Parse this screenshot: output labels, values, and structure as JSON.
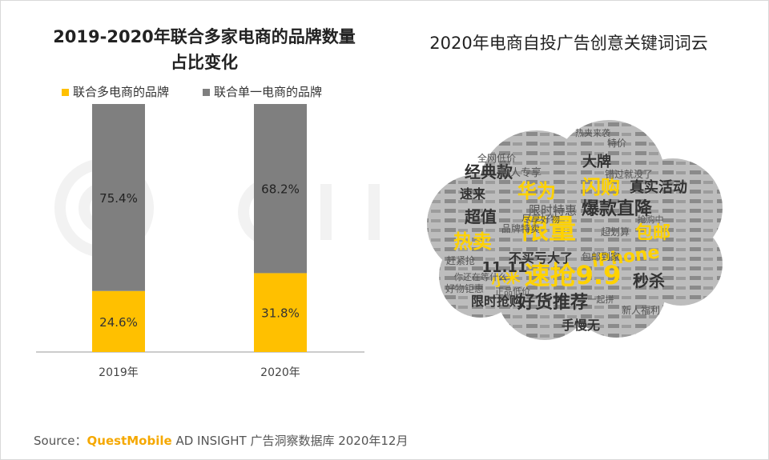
{
  "left_chart": {
    "title_line1": "2019-2020年联合多家电商的品牌数量",
    "title_line2": "占比变化"
  },
  "right_chart": {
    "title": "2020年电商自投广告创意关键词词云"
  },
  "colors": {
    "multi": "#ffc000",
    "single": "#7f7f7f",
    "cloud_bg": "#9a9a9a",
    "cloud_highlight": "#ffd200",
    "brand": "#f5a800"
  },
  "chart_data": [
    {
      "type": "bar",
      "stacked": true,
      "categories": [
        "2019年",
        "2020年"
      ],
      "series": [
        {
          "name": "联合多电商的品牌",
          "values": [
            24.6,
            31.8
          ],
          "labels": [
            "24.6%",
            "31.8%"
          ]
        },
        {
          "name": "联合单一电商的品牌",
          "values": [
            75.4,
            68.2
          ],
          "labels": [
            "75.4%",
            "68.2%"
          ]
        }
      ],
      "ylim": [
        0,
        100
      ],
      "legend_position": "top"
    },
    {
      "type": "wordcloud",
      "highlight_words": [
        "限量",
        "速抢9.9",
        "华为",
        "闪购",
        "热卖",
        "包邮",
        "iPhone",
        "小米"
      ],
      "words": [
        "爆款直降",
        "好货推荐",
        "超值",
        "经典款",
        "大牌",
        "真实活动",
        "限时特惠",
        "不买亏大了",
        "11.11",
        "秒杀",
        "手慢无",
        "限时抢购",
        "速来",
        "新人专享",
        "全网低价",
        "品牌特卖",
        "尽享好物",
        "赶紧抢",
        "好物钜惠",
        "错过就没了",
        "新人福利",
        "超划算",
        "包邮到家",
        "特价",
        "正品低价",
        "你还在等什么",
        "一起拼",
        "热夹来袭",
        "抢购中"
      ]
    }
  ],
  "source": {
    "label": "Source：",
    "brand": "QuestMobile",
    "text": " AD INSIGHT 广告洞察数据库 2020年12月"
  }
}
